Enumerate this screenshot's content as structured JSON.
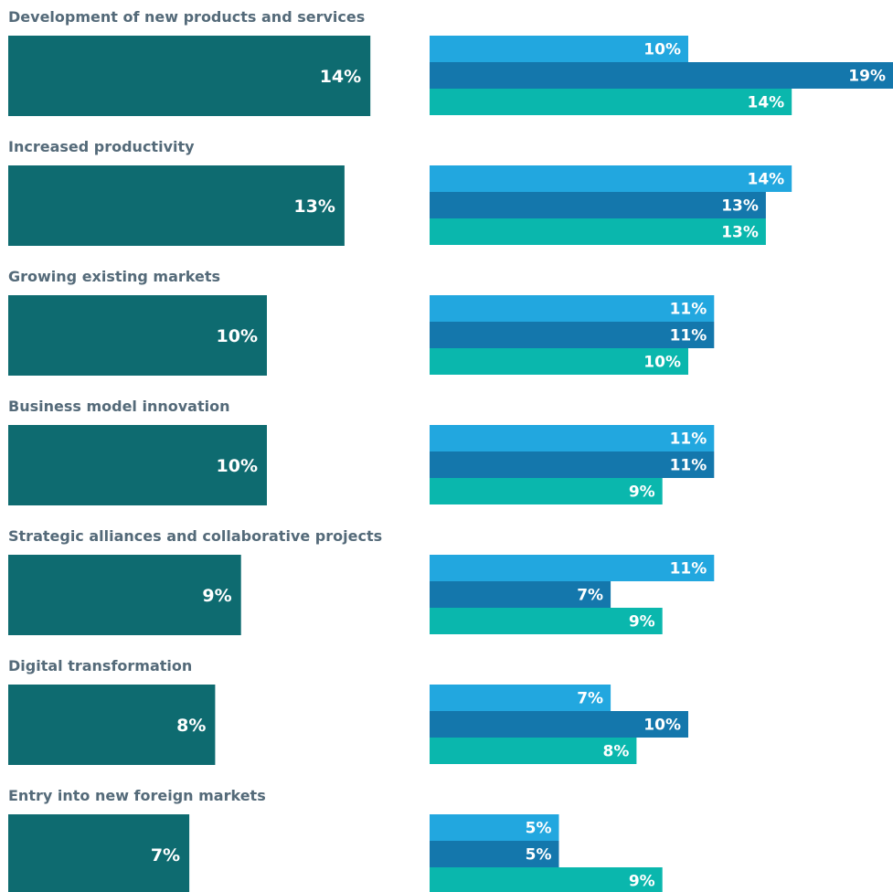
{
  "chart_data": {
    "type": "bar",
    "orientation": "horizontal",
    "categories": [
      "Development of new products and services",
      "Increased productivity",
      "Growing existing markets",
      "Business model innovation",
      "Strategic alliances and collaborative projects",
      "Digital transformation",
      "Entry into new foreign markets"
    ],
    "total": {
      "values": [
        14,
        13,
        10,
        10,
        9,
        8,
        7
      ],
      "color": "#0e6b70"
    },
    "series": [
      {
        "values": [
          10,
          14,
          11,
          11,
          11,
          7,
          5
        ],
        "color": "#22a7df"
      },
      {
        "values": [
          19,
          13,
          11,
          11,
          7,
          10,
          5
        ],
        "color": "#1477ac"
      },
      {
        "values": [
          14,
          13,
          10,
          9,
          9,
          8,
          9
        ],
        "color": "#0ab7ad"
      }
    ],
    "value_suffix": "%",
    "label_color": "#546a79",
    "title": "",
    "xlabel": "",
    "ylabel": ""
  }
}
